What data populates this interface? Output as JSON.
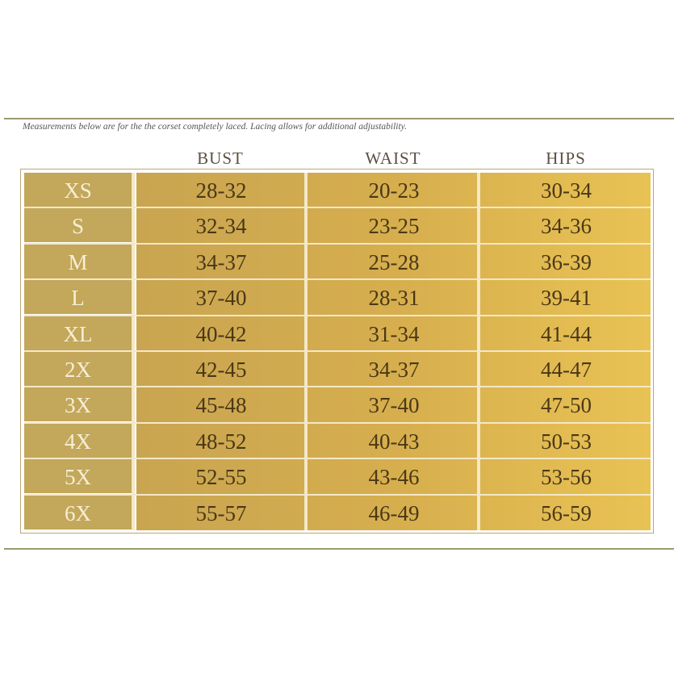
{
  "note": "Measurements below are for the the corset completely laced. Lacing allows for additional adjustability.",
  "headers": [
    "BUST",
    "WAIST",
    "HIPS"
  ],
  "rows": [
    [
      "XS",
      "28-32",
      "20-23",
      "30-34"
    ],
    [
      "S",
      "32-34",
      "23-25",
      "34-36"
    ],
    [
      "M",
      "34-37",
      "25-28",
      "36-39"
    ],
    [
      "L",
      "37-40",
      "28-31",
      "39-41"
    ],
    [
      "XL",
      "40-42",
      "31-34",
      "41-44"
    ],
    [
      "2X",
      "42-45",
      "34-37",
      "44-47"
    ],
    [
      "3X",
      "45-48",
      "37-40",
      "47-50"
    ],
    [
      "4X",
      "48-52",
      "40-43",
      "50-53"
    ],
    [
      "5X",
      "52-55",
      "43-46",
      "53-56"
    ],
    [
      "6X",
      "55-57",
      "46-49",
      "56-59"
    ]
  ],
  "colors": {
    "size_cell": "#c3a75a",
    "data_gradient_start": "#c9a551",
    "data_gradient_end": "#e9c254",
    "text": "#4a3816"
  }
}
